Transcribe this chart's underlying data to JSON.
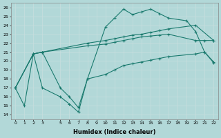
{
  "xlabel": "Humidex (Indice chaleur)",
  "bg_color": "#b2d8d8",
  "grid_color": "#d0e8e8",
  "line_color": "#1a7a6e",
  "xlim": [
    -0.5,
    22.5
  ],
  "ylim": [
    13.5,
    26.5
  ],
  "xticks": [
    0,
    1,
    2,
    3,
    5,
    6,
    7,
    8,
    9,
    10,
    11,
    12,
    13,
    14,
    15,
    16,
    17,
    18,
    19,
    20,
    21,
    22
  ],
  "yticks": [
    14,
    15,
    16,
    17,
    18,
    19,
    20,
    21,
    22,
    23,
    24,
    25,
    26
  ],
  "lines": [
    {
      "x": [
        0,
        1,
        2,
        3,
        5,
        6,
        7,
        8,
        10,
        11,
        12,
        13,
        14,
        15,
        16,
        17,
        19,
        20,
        21,
        22
      ],
      "y": [
        17.0,
        15.0,
        20.8,
        17.0,
        16.0,
        15.2,
        14.3,
        18.0,
        23.8,
        24.8,
        25.8,
        25.2,
        25.5,
        25.8,
        25.3,
        24.8,
        24.5,
        23.3,
        21.0,
        19.8
      ]
    },
    {
      "x": [
        0,
        2,
        3,
        8,
        10,
        11,
        12,
        13,
        14,
        15,
        16,
        17,
        20,
        22
      ],
      "y": [
        17.0,
        20.8,
        21.0,
        22.0,
        22.3,
        22.5,
        22.7,
        22.9,
        23.0,
        23.2,
        23.4,
        23.6,
        24.0,
        22.3
      ]
    },
    {
      "x": [
        0,
        2,
        3,
        8,
        10,
        11,
        12,
        13,
        14,
        15,
        16,
        17,
        20,
        21,
        22
      ],
      "y": [
        17.0,
        20.8,
        21.0,
        21.7,
        21.9,
        22.1,
        22.3,
        22.5,
        22.7,
        22.8,
        22.9,
        23.0,
        22.3,
        22.3,
        22.3
      ]
    },
    {
      "x": [
        0,
        2,
        3,
        5,
        6,
        7,
        8,
        10,
        11,
        12,
        13,
        14,
        15,
        16,
        17,
        20,
        21,
        22
      ],
      "y": [
        17.0,
        20.8,
        21.0,
        17.0,
        16.0,
        14.8,
        18.0,
        18.5,
        19.0,
        19.5,
        19.7,
        19.9,
        20.1,
        20.3,
        20.5,
        20.8,
        21.0,
        19.9
      ]
    }
  ]
}
